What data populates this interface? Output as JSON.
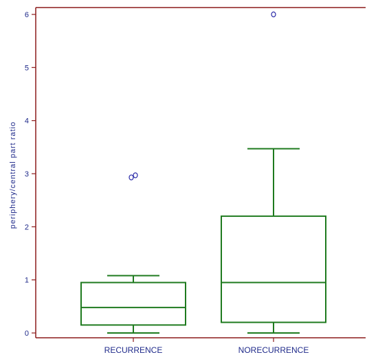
{
  "chart_data": {
    "type": "boxplot",
    "ylabel": "periphery/central part ratio",
    "ylim": [
      0,
      6
    ],
    "yticks": [
      "0",
      "1",
      "2",
      "3",
      "4",
      "5",
      "6"
    ],
    "categories": [
      "RECURRENCE",
      "NORECURRENCE"
    ],
    "boxes": [
      {
        "category": "RECURRENCE",
        "whisker_low": 0.0,
        "q1": 0.15,
        "median": 0.48,
        "q3": 0.95,
        "whisker_high": 1.08,
        "outliers": [
          2.93,
          2.97
        ]
      },
      {
        "category": "NORECURRENCE",
        "whisker_low": 0.0,
        "q1": 0.2,
        "median": 0.95,
        "q3": 2.2,
        "whisker_high": 3.47,
        "outliers": [
          6.0
        ]
      }
    ],
    "grid": false
  },
  "colors": {
    "frame": "#8b1a1a",
    "box": "#1e7a1e",
    "outlier": "#2a2aa8",
    "text": "#1f2a8a"
  }
}
